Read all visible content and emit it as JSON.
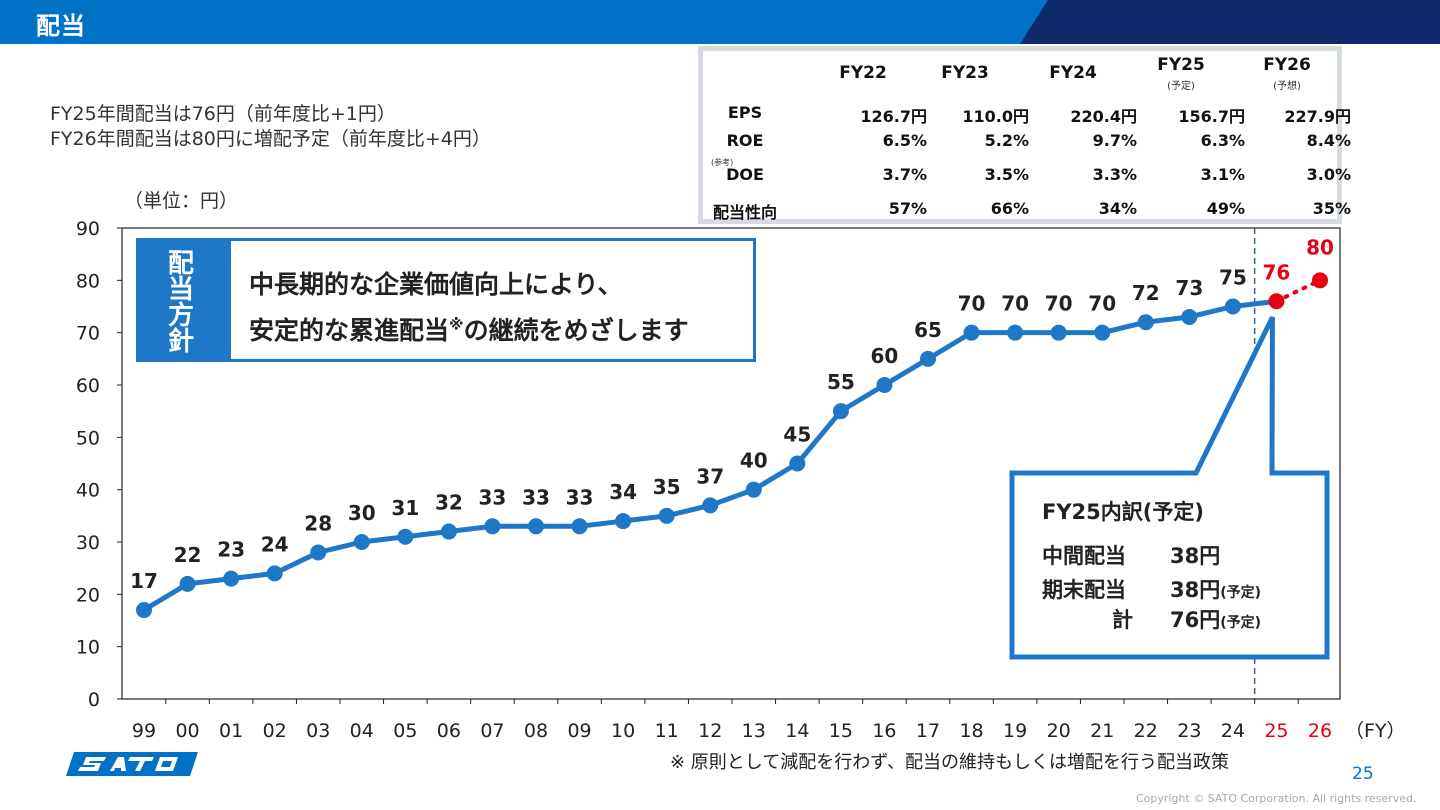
{
  "header": {
    "title": "配当"
  },
  "summary": {
    "line1": "FY25年間配当は76円（前年度比+1円）",
    "line2": "FY26年間配当は80円に増配予定（前年度比+4円）"
  },
  "unit_label": "（単位：円）",
  "table": {
    "columns": [
      "FY22",
      "FY23",
      "FY24",
      "FY25",
      "FY26"
    ],
    "column_notes": [
      "",
      "",
      "",
      "(予定)",
      "(予想)"
    ],
    "ref_note": "(参考)",
    "rows": [
      {
        "label": "EPS",
        "values": [
          "126.7円",
          "110.0円",
          "220.4円",
          "156.7円",
          "227.9円"
        ]
      },
      {
        "label": "ROE",
        "values": [
          "6.5%",
          "5.2%",
          "9.7%",
          "6.3%",
          "8.4%"
        ]
      },
      {
        "label": "DOE",
        "values": [
          "3.7%",
          "3.5%",
          "3.3%",
          "3.1%",
          "3.0%"
        ]
      },
      {
        "label": "配当性向",
        "values": [
          "57%",
          "66%",
          "34%",
          "49%",
          "35%"
        ]
      }
    ]
  },
  "policy": {
    "tag": [
      "配",
      "当",
      "方",
      "針"
    ],
    "line1": "中長期的な企業価値向上により、",
    "line2a": "安定的な累進配当",
    "line2_mark": "※",
    "line2b": "の継続をめざします"
  },
  "breakdown": {
    "title": "FY25内訳(予定)",
    "interim_label": "中間配当",
    "interim_value": "38円",
    "yearend_label": "期末配当",
    "yearend_value": "38円",
    "yearend_note": "(予定)",
    "total_label": "計",
    "total_value": "76円",
    "total_note": "(予定)"
  },
  "chart_data": {
    "type": "line",
    "categories": [
      "99",
      "00",
      "01",
      "02",
      "03",
      "04",
      "05",
      "06",
      "07",
      "08",
      "09",
      "10",
      "11",
      "12",
      "13",
      "14",
      "15",
      "16",
      "17",
      "18",
      "19",
      "20",
      "21",
      "22",
      "23",
      "24",
      "25",
      "26"
    ],
    "values": [
      17,
      22,
      23,
      24,
      28,
      30,
      31,
      32,
      33,
      33,
      33,
      34,
      35,
      37,
      40,
      45,
      55,
      60,
      65,
      70,
      70,
      70,
      70,
      72,
      73,
      75,
      76,
      80
    ],
    "x_unit": "（FY）",
    "ylim": [
      0,
      90
    ],
    "yticks": [
      0,
      10,
      20,
      30,
      40,
      50,
      60,
      70,
      80,
      90
    ],
    "highlighted_categories": [
      "25",
      "26"
    ],
    "forecast_segment": "25-26 dotted",
    "colors": {
      "line": "#1f77c8",
      "highlight": "#e60012",
      "axis": "#222222",
      "divider": "#3b5fb0"
    }
  },
  "footnote": "※ 原則として減配を行わず、配当の維持もしくは増配を行う配当政策",
  "page_number": "25",
  "copyright": "Copyright © SATO Corporation. All rights reserved.",
  "logo_text": "SATO"
}
